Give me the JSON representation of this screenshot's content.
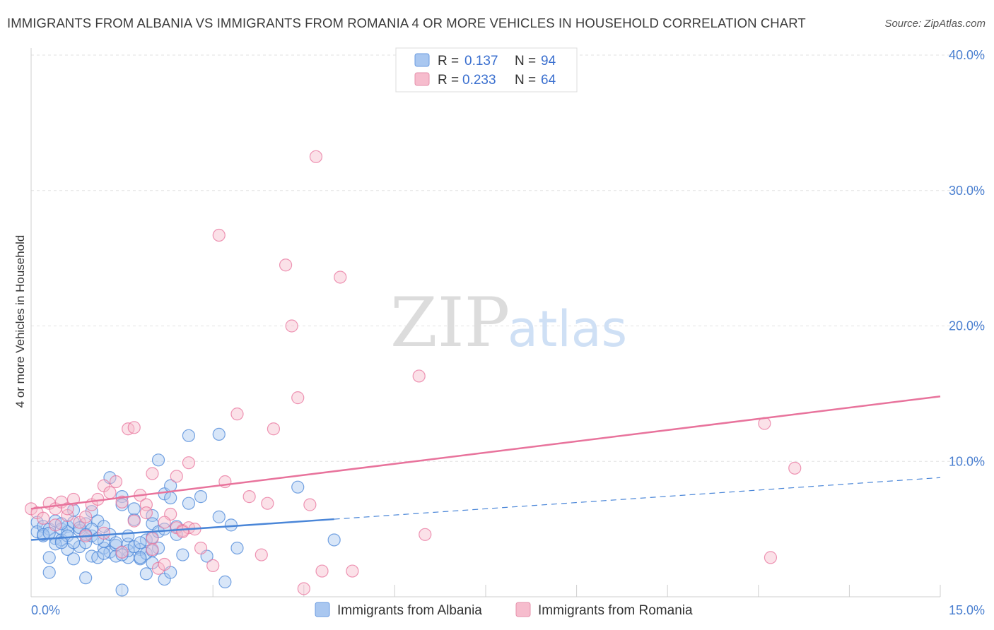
{
  "title": "IMMIGRANTS FROM ALBANIA VS IMMIGRANTS FROM ROMANIA 4 OR MORE VEHICLES IN HOUSEHOLD CORRELATION CHART",
  "source": "Source: ZipAtlas.com",
  "watermark": {
    "zip": "ZIP",
    "atlas": "atlas"
  },
  "legend": {
    "r_label": "R =",
    "n_label": "N =",
    "rows": [
      {
        "name": "Immigrants from Albania",
        "r": "0.137",
        "n": "94",
        "fill": "#a9c7f0",
        "stroke": "#6a9be0"
      },
      {
        "name": "Immigrants from Romania",
        "r": "0.233",
        "n": "64",
        "fill": "#f6bccd",
        "stroke": "#e590ab"
      }
    ]
  },
  "chart_data": {
    "type": "scatter",
    "title": "IMMIGRANTS FROM ALBANIA VS IMMIGRANTS FROM ROMANIA 4 OR MORE VEHICLES IN HOUSEHOLD CORRELATION CHART",
    "xlabel": "",
    "ylabel": "4 or more Vehicles in Household",
    "xlim": [
      0,
      15
    ],
    "ylim": [
      0,
      40
    ],
    "x_tick_labels": [
      "0.0%",
      "15.0%"
    ],
    "y_ticks": [
      10,
      20,
      30,
      40
    ],
    "y_tick_labels": [
      "10.0%",
      "20.0%",
      "30.0%",
      "40.0%"
    ],
    "grid": true,
    "legend_position": "top-center",
    "series": [
      {
        "name": "Immigrants from Albania",
        "color": "#4a86d8",
        "fill": "#a9c7f0",
        "trend": {
          "x": [
            0,
            15
          ],
          "y": [
            4.2,
            8.8
          ],
          "solid_until": 5.0
        },
        "points": [
          [
            0.1,
            5.5
          ],
          [
            0.1,
            4.8
          ],
          [
            0.2,
            5.2
          ],
          [
            0.2,
            4.5
          ],
          [
            0.3,
            5.0
          ],
          [
            0.3,
            1.8
          ],
          [
            0.3,
            2.9
          ],
          [
            0.4,
            5.6
          ],
          [
            0.4,
            4.3
          ],
          [
            0.5,
            5.0
          ],
          [
            0.5,
            4.2
          ],
          [
            0.6,
            5.2
          ],
          [
            0.6,
            3.5
          ],
          [
            0.6,
            4.8
          ],
          [
            0.7,
            6.4
          ],
          [
            0.7,
            5.5
          ],
          [
            0.7,
            2.8
          ],
          [
            0.8,
            4.9
          ],
          [
            0.8,
            3.7
          ],
          [
            0.9,
            5.4
          ],
          [
            0.9,
            4.0
          ],
          [
            0.9,
            1.4
          ],
          [
            1.0,
            6.3
          ],
          [
            1.0,
            4.5
          ],
          [
            1.0,
            3.0
          ],
          [
            1.1,
            5.6
          ],
          [
            1.1,
            2.9
          ],
          [
            1.2,
            3.6
          ],
          [
            1.2,
            4.1
          ],
          [
            1.3,
            8.8
          ],
          [
            1.3,
            3.3
          ],
          [
            1.4,
            3.8
          ],
          [
            1.4,
            3.0
          ],
          [
            1.5,
            7.4
          ],
          [
            1.5,
            6.8
          ],
          [
            1.5,
            0.5
          ],
          [
            1.6,
            3.9
          ],
          [
            1.6,
            2.9
          ],
          [
            1.7,
            5.7
          ],
          [
            1.7,
            6.5
          ],
          [
            1.8,
            3.5
          ],
          [
            1.8,
            2.8
          ],
          [
            1.9,
            4.2
          ],
          [
            1.9,
            1.7
          ],
          [
            2.0,
            6.0
          ],
          [
            2.0,
            5.4
          ],
          [
            2.0,
            4.4
          ],
          [
            2.1,
            10.1
          ],
          [
            2.1,
            3.6
          ],
          [
            2.2,
            7.6
          ],
          [
            2.2,
            1.3
          ],
          [
            2.3,
            8.2
          ],
          [
            2.3,
            7.3
          ],
          [
            2.3,
            1.8
          ],
          [
            2.4,
            4.6
          ],
          [
            2.5,
            3.1
          ],
          [
            2.6,
            11.9
          ],
          [
            2.6,
            6.9
          ],
          [
            2.8,
            7.4
          ],
          [
            2.9,
            3.0
          ],
          [
            3.1,
            12.0
          ],
          [
            3.1,
            5.9
          ],
          [
            3.2,
            1.1
          ],
          [
            3.3,
            5.3
          ],
          [
            3.4,
            3.6
          ],
          [
            4.4,
            8.1
          ],
          [
            5.0,
            4.2
          ],
          [
            0.2,
            4.6
          ],
          [
            0.4,
            3.9
          ],
          [
            0.5,
            5.4
          ],
          [
            0.6,
            4.5
          ],
          [
            0.8,
            5.1
          ],
          [
            1.0,
            5.0
          ],
          [
            1.1,
            4.3
          ],
          [
            1.2,
            3.2
          ],
          [
            1.3,
            4.6
          ],
          [
            1.4,
            4.0
          ],
          [
            1.6,
            3.4
          ],
          [
            1.7,
            3.7
          ],
          [
            1.8,
            4.0
          ],
          [
            1.9,
            3.2
          ],
          [
            2.0,
            2.5
          ],
          [
            2.1,
            4.8
          ],
          [
            2.2,
            5.0
          ],
          [
            2.4,
            5.2
          ],
          [
            0.7,
            4.0
          ],
          [
            0.9,
            4.6
          ],
          [
            1.2,
            5.2
          ],
          [
            1.5,
            3.1
          ],
          [
            1.6,
            4.5
          ],
          [
            1.8,
            2.9
          ],
          [
            2.0,
            3.4
          ],
          [
            0.3,
            4.7
          ],
          [
            0.5,
            4.0
          ]
        ]
      },
      {
        "name": "Immigrants from Romania",
        "color": "#e8739c",
        "fill": "#f6bccd",
        "trend": {
          "x": [
            0,
            15
          ],
          "y": [
            6.5,
            14.8
          ]
        },
        "points": [
          [
            0.0,
            6.5
          ],
          [
            0.1,
            6.2
          ],
          [
            0.2,
            5.8
          ],
          [
            0.3,
            6.9
          ],
          [
            0.4,
            6.5
          ],
          [
            0.5,
            7.0
          ],
          [
            0.6,
            6.0
          ],
          [
            0.7,
            7.2
          ],
          [
            0.8,
            5.5
          ],
          [
            0.9,
            4.5
          ],
          [
            1.0,
            6.8
          ],
          [
            1.1,
            7.2
          ],
          [
            1.2,
            8.2
          ],
          [
            1.3,
            7.7
          ],
          [
            1.4,
            8.5
          ],
          [
            1.5,
            7.0
          ],
          [
            1.6,
            12.4
          ],
          [
            1.7,
            12.5
          ],
          [
            1.8,
            7.5
          ],
          [
            1.9,
            6.8
          ],
          [
            2.0,
            4.3
          ],
          [
            2.0,
            3.5
          ],
          [
            2.0,
            9.1
          ],
          [
            2.1,
            2.1
          ],
          [
            2.2,
            2.4
          ],
          [
            2.3,
            6.1
          ],
          [
            2.4,
            5.1
          ],
          [
            2.4,
            8.9
          ],
          [
            2.5,
            4.9
          ],
          [
            2.6,
            5.1
          ],
          [
            2.6,
            9.9
          ],
          [
            2.8,
            3.6
          ],
          [
            3.0,
            2.3
          ],
          [
            3.1,
            26.7
          ],
          [
            3.2,
            8.5
          ],
          [
            3.4,
            13.5
          ],
          [
            3.6,
            7.4
          ],
          [
            3.8,
            3.1
          ],
          [
            3.9,
            6.9
          ],
          [
            4.0,
            12.4
          ],
          [
            4.2,
            24.5
          ],
          [
            4.3,
            20.0
          ],
          [
            4.4,
            14.7
          ],
          [
            4.5,
            0.6
          ],
          [
            4.6,
            6.8
          ],
          [
            4.7,
            32.5
          ],
          [
            4.8,
            1.9
          ],
          [
            5.1,
            23.6
          ],
          [
            5.3,
            1.9
          ],
          [
            6.4,
            16.3
          ],
          [
            6.5,
            4.6
          ],
          [
            12.1,
            12.8
          ],
          [
            12.2,
            2.9
          ],
          [
            12.6,
            9.5
          ],
          [
            0.6,
            6.5
          ],
          [
            0.9,
            5.9
          ],
          [
            1.2,
            4.7
          ],
          [
            1.5,
            3.3
          ],
          [
            1.7,
            5.6
          ],
          [
            1.9,
            6.2
          ],
          [
            2.2,
            5.5
          ],
          [
            2.5,
            4.8
          ],
          [
            2.7,
            5.0
          ],
          [
            0.4,
            5.3
          ]
        ]
      }
    ]
  }
}
